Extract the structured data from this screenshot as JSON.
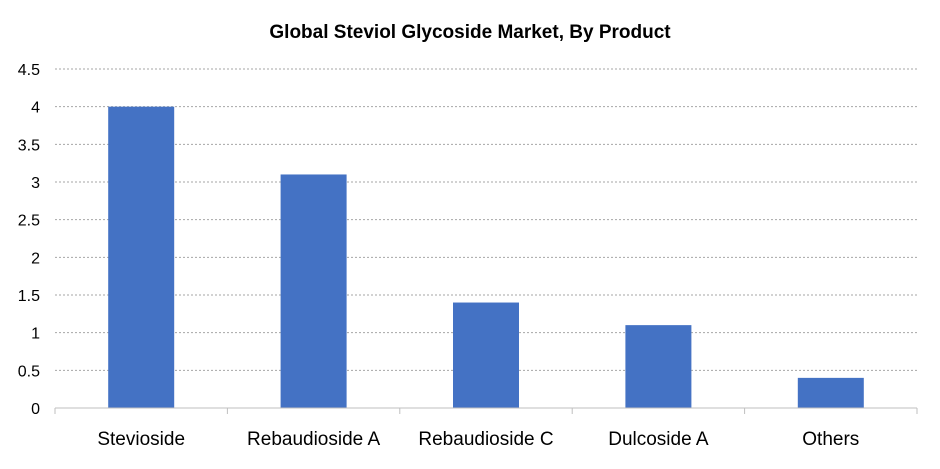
{
  "chart_data": {
    "type": "bar",
    "title": "Global Steviol Glycoside Market, By Product",
    "xlabel": "",
    "ylabel": "",
    "categories": [
      "Stevioside",
      "Rebaudioside A",
      "Rebaudioside C",
      "Dulcoside A",
      "Others"
    ],
    "values": [
      4.0,
      3.1,
      1.4,
      1.1,
      0.4
    ],
    "ylim": [
      0,
      4.5
    ],
    "ytick_labels": [
      "0",
      "0.5",
      "1",
      "1.5",
      "2",
      "2.5",
      "3",
      "3.5",
      "4",
      "4.5"
    ],
    "grid": true,
    "legend": "none",
    "bar_color": "#4472C4",
    "grid_color": "#A6A6A6"
  }
}
